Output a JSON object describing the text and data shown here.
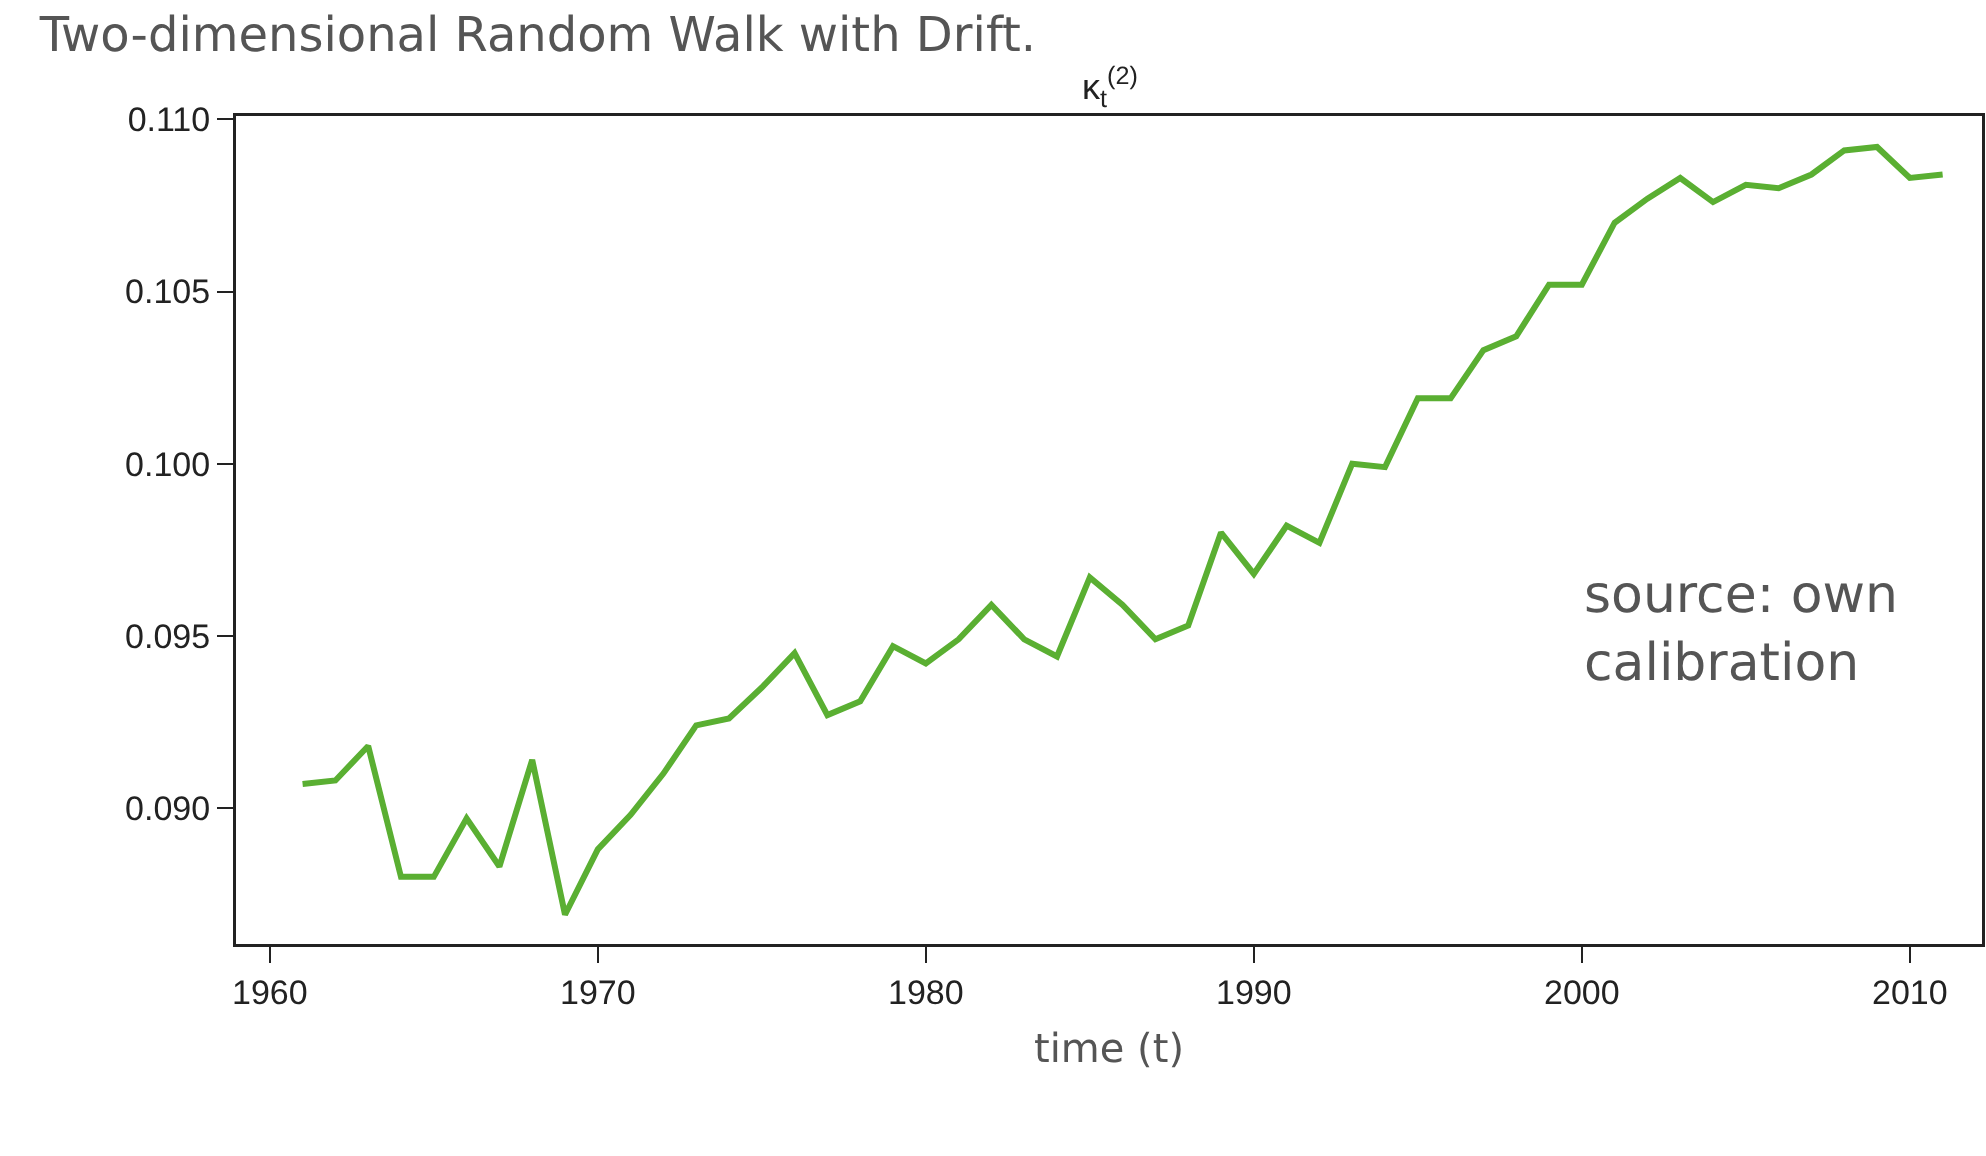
{
  "chart_data": {
    "type": "line",
    "title": "Two-dimensional Random Walk with Drift.",
    "subtitle": "κ$_{t}$$^{(2)}$",
    "xlabel": "time (t)",
    "annotations": [
      "source: own\ncalibration"
    ],
    "x": [
      1961,
      1962,
      1963,
      1964,
      1965,
      1966,
      1967,
      1968,
      1969,
      1970,
      1971,
      1972,
      1973,
      1974,
      1975,
      1976,
      1977,
      1978,
      1979,
      1980,
      1981,
      1982,
      1983,
      1984,
      1985,
      1986,
      1987,
      1988,
      1989,
      1990,
      1991,
      1992,
      1993,
      1994,
      1995,
      1996,
      1997,
      1998,
      1999,
      2000,
      2001,
      2002,
      2003,
      2004,
      2005,
      2006,
      2007,
      2008,
      2009,
      2010,
      2011
    ],
    "series": [
      {
        "color": "#5aaf32",
        "values": [
          0.0907,
          0.0908,
          0.0918,
          0.088,
          0.088,
          0.0897,
          0.0883,
          0.0914,
          0.0869,
          0.0888,
          0.0898,
          0.091,
          0.0924,
          0.0926,
          0.0935,
          0.0945,
          0.0927,
          0.0931,
          0.0947,
          0.0942,
          0.0949,
          0.0959,
          0.0949,
          0.0944,
          0.0967,
          0.0959,
          0.0949,
          0.0953,
          0.098,
          0.0968,
          0.0982,
          0.0977,
          0.1,
          0.0999,
          0.1019,
          0.1019,
          0.1033,
          0.1037,
          0.1052,
          0.1052,
          0.107,
          0.1077,
          0.1083,
          0.1076,
          0.1081,
          0.108,
          0.1084,
          0.1091,
          0.1092,
          0.1083,
          0.1084
        ]
      }
    ],
    "xlim": [
      1958.97,
      2012.2
    ],
    "xticks": [
      1960,
      1970,
      1980,
      1990,
      2000,
      2010
    ],
    "ylim": [
      0.08605,
      0.1101
    ],
    "yticks": [
      {
        "value": 0.09,
        "label": "0.090"
      },
      {
        "value": 0.095,
        "label": "0.095"
      },
      {
        "value": 0.1,
        "label": "0.100"
      },
      {
        "value": 0.105,
        "label": "0.105"
      },
      {
        "value": 0.11,
        "label": "0.110"
      }
    ],
    "grid": false,
    "line_style": "solid",
    "marker": "none"
  }
}
